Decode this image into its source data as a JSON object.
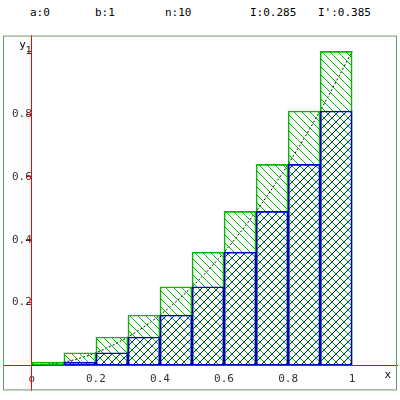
{
  "chart_data": {
    "type": "bar",
    "annotations": [
      "a:0",
      "b:1",
      "n:10",
      "I:0.285",
      "I':0.385"
    ],
    "x_label": "x",
    "y_label": "y",
    "bins": [
      0,
      0.1,
      0.2,
      0.3,
      0.4,
      0.5,
      0.6,
      0.7,
      0.8,
      0.9,
      1
    ],
    "series": [
      {
        "type": "bar",
        "color": "#0000cc",
        "values": [
          0,
          0.01,
          0.04,
          0.09,
          0.16,
          0.25,
          0.36,
          0.49,
          0.64,
          0.81
        ]
      },
      {
        "type": "bar",
        "color": "#00bb00",
        "values": [
          0.01,
          0.04,
          0.09,
          0.16,
          0.25,
          0.36,
          0.49,
          0.64,
          0.81,
          1
        ]
      },
      {
        "type": "line",
        "color": "#000000",
        "line_style": "dotted",
        "x": [
          0,
          0.1,
          0.2,
          0.3,
          0.4,
          0.5,
          0.6,
          0.7,
          0.8,
          0.9,
          1
        ],
        "values": [
          0,
          0.01,
          0.04,
          0.09,
          0.16,
          0.25,
          0.36,
          0.49,
          0.64,
          0.81,
          1
        ]
      }
    ],
    "xlim": [
      -0.09,
      1.14
    ],
    "ylim": [
      -0.08,
      1.05
    ],
    "xticks": [
      {
        "value": 0,
        "label": "o"
      },
      0.2,
      0.4,
      0.6,
      0.8,
      1
    ],
    "yticks": [
      0.2,
      0.4,
      0.6,
      0.8,
      1
    ],
    "grid": false
  }
}
